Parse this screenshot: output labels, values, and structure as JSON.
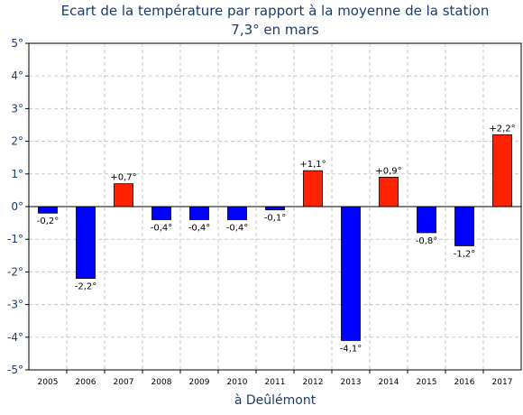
{
  "chart_data": {
    "type": "bar",
    "title": "Ecart de la température par rapport à la moyenne de la station",
    "subtitle": "7,3° en mars",
    "xlabel": "à Deûlémont",
    "ylabel": "",
    "ylim": [
      -5,
      5
    ],
    "yticks": [
      {
        "value": 5,
        "label": "5°"
      },
      {
        "value": 4,
        "label": "4°"
      },
      {
        "value": 3,
        "label": "3°"
      },
      {
        "value": 2,
        "label": "2°"
      },
      {
        "value": 1,
        "label": "1°"
      },
      {
        "value": 0,
        "label": "0°"
      },
      {
        "value": -1,
        "label": "-1°"
      },
      {
        "value": -2,
        "label": "-2°"
      },
      {
        "value": -3,
        "label": "-3°"
      },
      {
        "value": -4,
        "label": "-4°"
      },
      {
        "value": -5,
        "label": "-5°"
      }
    ],
    "categories": [
      "2005",
      "2006",
      "2007",
      "2008",
      "2009",
      "2010",
      "2011",
      "2012",
      "2013",
      "2014",
      "2015",
      "2016",
      "2017"
    ],
    "values": [
      -0.2,
      -2.2,
      0.7,
      -0.4,
      -0.4,
      -0.4,
      -0.1,
      1.1,
      -4.1,
      0.9,
      -0.8,
      -1.2,
      2.2
    ],
    "data_labels": [
      "-0,2°",
      "-2,2°",
      "+0,7°",
      "-0,4°",
      "-0,4°",
      "-0,4°",
      "-0,1°",
      "+1,1°",
      "-4,1°",
      "+0,9°",
      "-0,8°",
      "-1,2°",
      "+2,2°"
    ],
    "grid": true,
    "colors": {
      "positive": "#ff2200",
      "negative": "#0000ff",
      "title": "#1a3d6e",
      "grid": "#c8c8c8"
    }
  }
}
